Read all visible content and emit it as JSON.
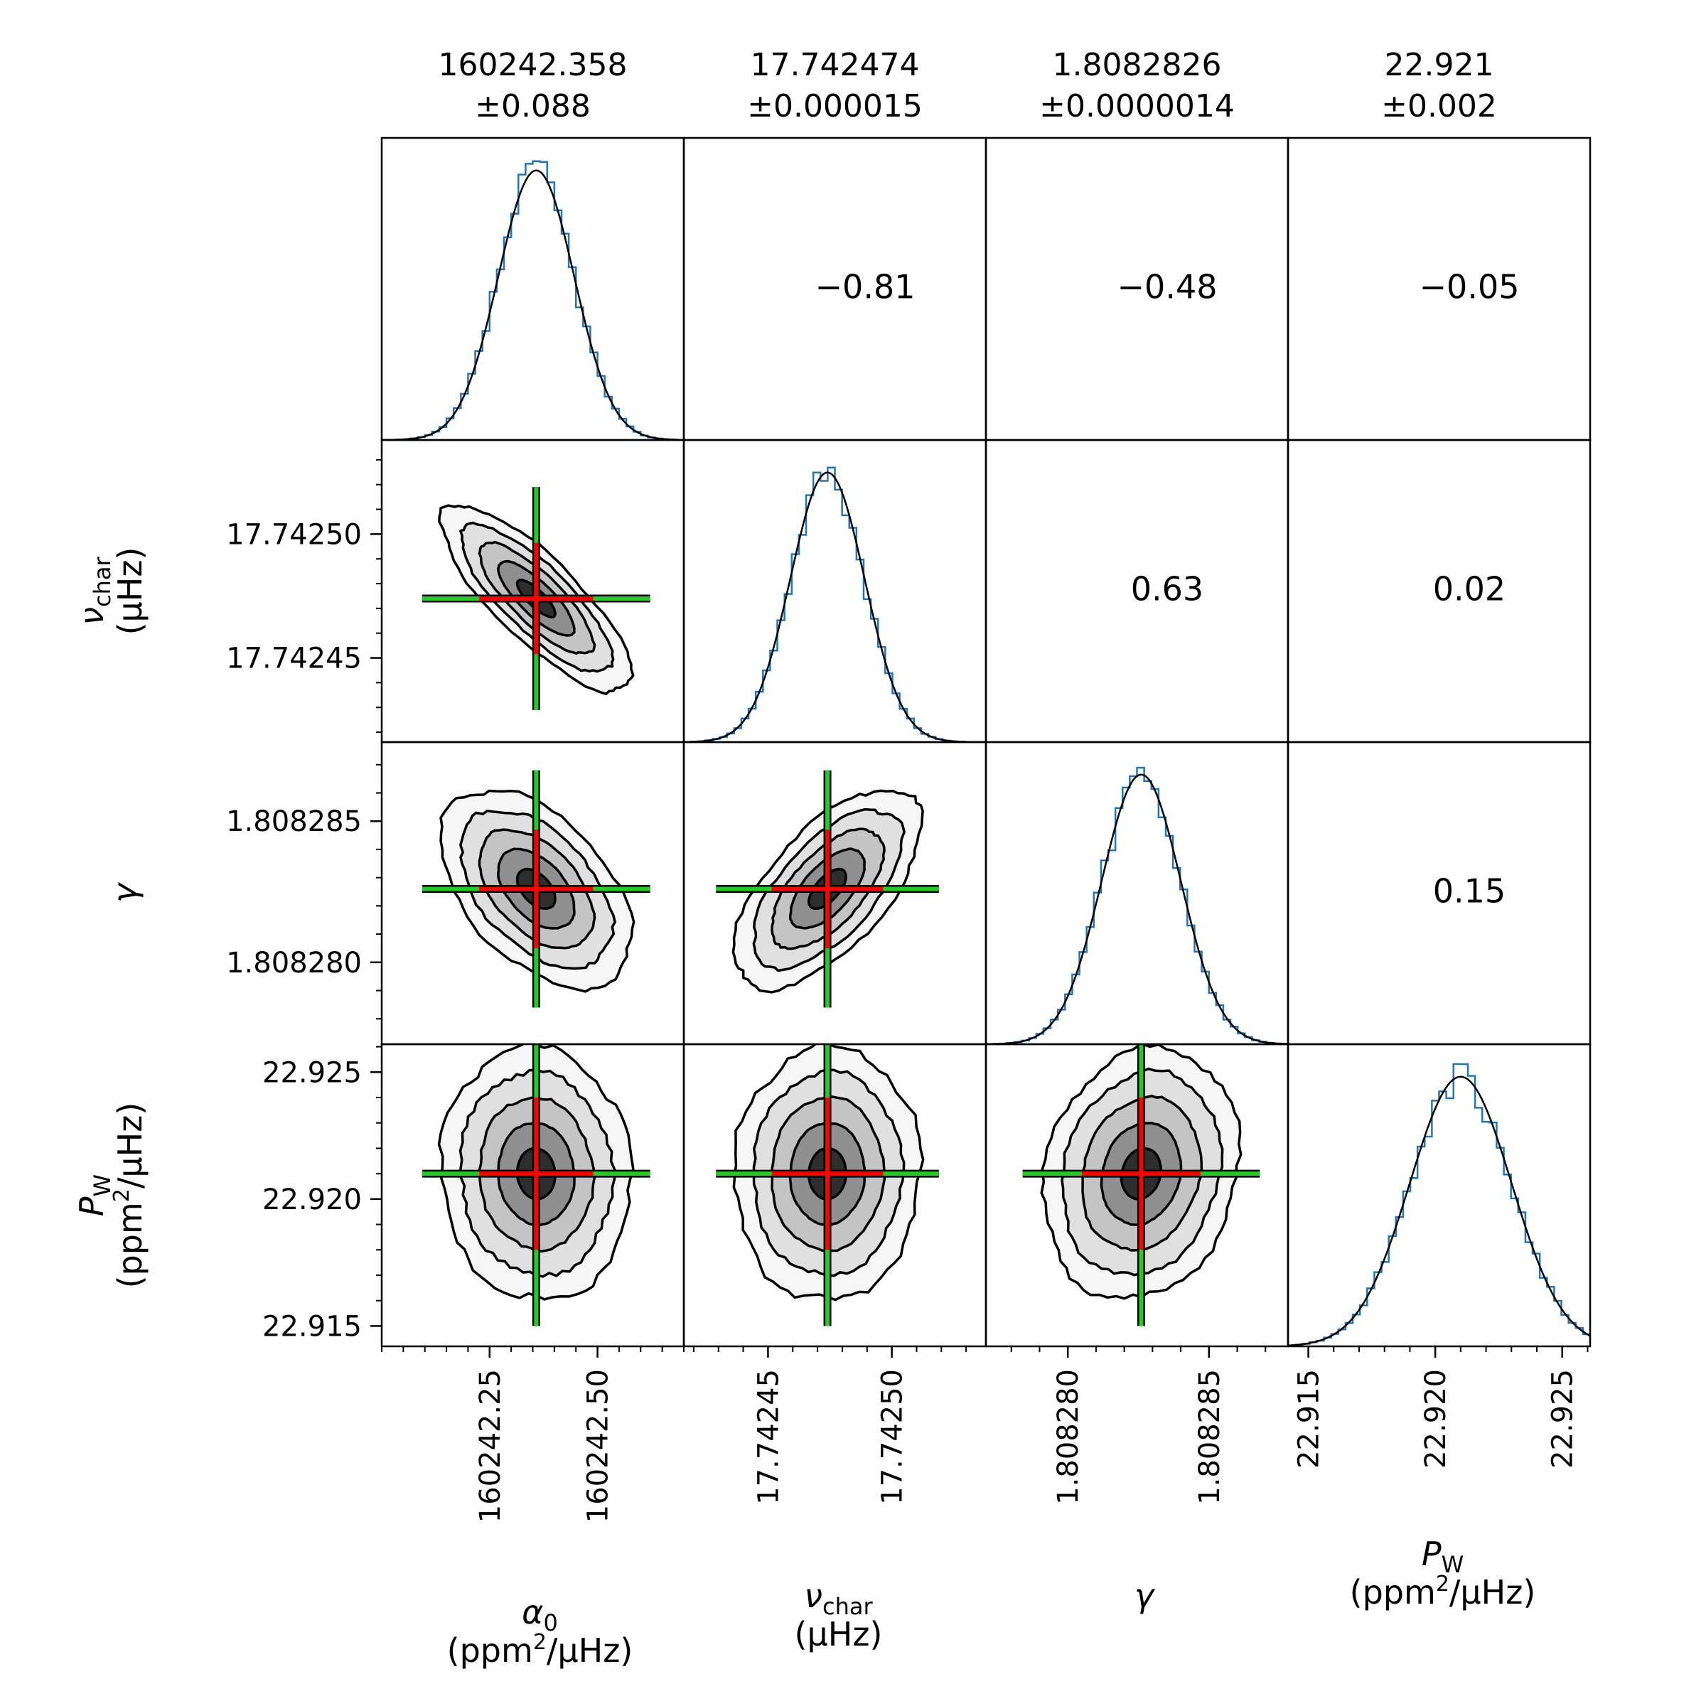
{
  "chart_data": {
    "type": "corner",
    "parameters": [
      {
        "key": "alpha0",
        "label": "α",
        "sub": "0",
        "unit_pre": "(ppm",
        "unit_sup": "2",
        "unit_post": "/μHz)",
        "mean": 160242.358,
        "std": 0.088,
        "title_value": "160242.358",
        "title_err": "±0.088",
        "range": [
          160242.0,
          160242.7
        ],
        "ticks": [
          160242.25,
          160242.5
        ],
        "tick_labels": [
          "160242.25",
          "160242.50"
        ],
        "minor_step": 0.05
      },
      {
        "key": "nu_char",
        "label": "ν",
        "sub": "char",
        "unit_pre": "(μHz)",
        "unit_sup": "",
        "unit_post": "",
        "mean": 17.742474,
        "std": 1.5e-05,
        "title_value": "17.742474",
        "title_err": "±0.000015",
        "range": [
          17.742416,
          17.742538
        ],
        "ticks": [
          17.74245,
          17.7425
        ],
        "tick_labels": [
          "17.74245",
          "17.74250"
        ],
        "minor_step": 1e-05
      },
      {
        "key": "gamma",
        "label": "γ",
        "sub": "",
        "unit_pre": "",
        "unit_sup": "",
        "unit_post": "",
        "mean": 1.8082826,
        "std": 1.4e-06,
        "title_value": "1.8082826",
        "title_err": "±0.0000014",
        "range": [
          1.8082771,
          1.8082878
        ],
        "ticks": [
          1.80828,
          1.808285
        ],
        "tick_labels": [
          "1.808280",
          "1.808285"
        ],
        "minor_step": 1e-06
      },
      {
        "key": "P_W",
        "label": "P",
        "sub": "W",
        "unit_pre": "(ppm",
        "unit_sup": "2",
        "unit_post": "/μHz)",
        "mean": 22.921,
        "std": 0.002,
        "title_value": "22.921",
        "title_err": "±0.002",
        "range": [
          22.9142,
          22.9261
        ],
        "ticks": [
          22.915,
          22.92,
          22.925
        ],
        "tick_labels": [
          "22.915",
          "22.920",
          "22.925"
        ],
        "minor_step": 0.001
      }
    ],
    "correlations": [
      {
        "row": 0,
        "col": 1,
        "label": "−0.81",
        "value": -0.81
      },
      {
        "row": 0,
        "col": 2,
        "label": "−0.48",
        "value": -0.48
      },
      {
        "row": 0,
        "col": 3,
        "label": "−0.05",
        "value": -0.05
      },
      {
        "row": 1,
        "col": 2,
        "label": "0.63",
        "value": 0.63
      },
      {
        "row": 1,
        "col": 3,
        "label": "0.02",
        "value": 0.02
      },
      {
        "row": 2,
        "col": 3,
        "label": "0.15",
        "value": 0.15
      }
    ],
    "histogram": "step histogram of posterior samples with Gaussian fit overlay",
    "contour_levels_sigma": [
      0.5,
      1.0,
      1.5,
      2.0,
      2.5
    ],
    "contour_fills": [
      "#f6f6f6",
      "#e0e0e0",
      "#c4c4c4",
      "#8f8f8f",
      "#2e2e2e"
    ],
    "colors": {
      "histogram": "#1f77b4",
      "fit": "#000000",
      "contour_line": "#000000",
      "cross_inner": "#ff0000",
      "cross_outer": "#22cc22"
    }
  }
}
